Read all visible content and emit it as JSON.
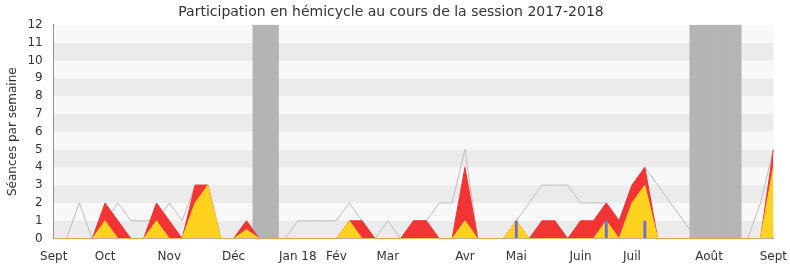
{
  "chart_data": {
    "type": "line",
    "title": "Participation en hémicycle au cours de la session 2017-2018",
    "y_label": "Séances par semaine",
    "categories": [
      "Sept",
      null,
      null,
      null,
      "Oct",
      null,
      null,
      null,
      null,
      "Nov",
      null,
      null,
      null,
      null,
      "Déc",
      null,
      null,
      null,
      null,
      "Jan 18",
      null,
      null,
      "Fév",
      null,
      null,
      null,
      "Mar",
      null,
      null,
      null,
      null,
      null,
      "Avr",
      null,
      null,
      null,
      "Mai",
      null,
      null,
      null,
      null,
      "Juin",
      null,
      null,
      null,
      "Juil",
      null,
      null,
      null,
      null,
      null,
      "Août",
      null,
      null,
      null,
      null,
      "Sept"
    ],
    "series": [
      {
        "type": "bar",
        "color": "#b4b4b4",
        "values": [
          null,
          null,
          null,
          null,
          null,
          null,
          null,
          null,
          null,
          null,
          null,
          null,
          null,
          null,
          null,
          null,
          12,
          12,
          null,
          null,
          null,
          null,
          null,
          null,
          null,
          null,
          null,
          null,
          null,
          null,
          null,
          null,
          null,
          null,
          null,
          null,
          null,
          null,
          null,
          null,
          null,
          null,
          null,
          null,
          null,
          null,
          null,
          null,
          null,
          null,
          12,
          12,
          12,
          12,
          null,
          null,
          null
        ]
      },
      {
        "type": "line",
        "color": "#bdbdbd",
        "values": [
          0,
          0,
          2,
          0,
          1,
          2,
          1,
          1,
          1,
          2,
          1,
          3,
          3,
          0,
          0,
          1,
          0,
          0,
          0,
          1,
          1,
          1,
          1,
          2,
          1,
          0,
          1,
          0,
          1,
          1,
          2,
          2,
          5,
          0,
          0,
          0,
          1,
          2,
          3,
          3,
          3,
          2,
          2,
          2,
          1,
          3,
          4,
          3,
          2,
          1,
          0,
          0,
          0,
          0,
          0,
          2,
          5
        ]
      },
      {
        "type": "area",
        "color": "#f23434",
        "values": [
          0,
          0,
          0,
          0,
          2,
          1,
          0,
          0,
          2,
          1,
          0,
          3,
          3,
          0,
          0,
          1,
          0,
          0,
          0,
          0,
          0,
          0,
          0,
          1,
          1,
          0,
          0,
          0,
          1,
          1,
          0,
          0,
          4,
          0,
          0,
          0,
          1,
          0,
          1,
          1,
          0,
          1,
          1,
          2,
          1,
          3,
          4,
          0,
          0,
          0,
          0,
          0,
          0,
          0,
          0,
          0,
          5
        ]
      },
      {
        "type": "area",
        "color": "#ffd21f",
        "values": [
          0,
          0,
          0,
          0,
          1,
          0,
          0,
          0,
          1,
          0,
          0,
          2,
          3,
          0,
          0,
          0.5,
          0,
          0,
          0,
          0,
          0,
          0,
          0,
          1,
          0,
          0,
          0,
          0,
          0,
          0,
          0,
          0,
          1,
          0,
          0,
          0,
          1,
          0,
          0,
          0,
          0,
          0,
          0,
          1,
          0,
          2,
          3,
          0,
          0,
          0,
          0,
          0,
          0,
          0,
          0,
          0,
          4
        ]
      },
      {
        "type": "bar",
        "color": "#6b6bd6",
        "values": [
          null,
          null,
          null,
          null,
          null,
          null,
          null,
          null,
          null,
          null,
          null,
          null,
          null,
          null,
          null,
          null,
          null,
          null,
          null,
          null,
          null,
          null,
          null,
          null,
          null,
          null,
          null,
          null,
          null,
          null,
          null,
          null,
          null,
          null,
          null,
          null,
          1,
          null,
          null,
          null,
          null,
          null,
          null,
          1,
          null,
          null,
          1,
          null,
          null,
          null,
          null,
          null,
          null,
          null,
          null,
          null,
          null
        ]
      }
    ],
    "ylim": [
      0,
      12
    ],
    "yticks": [
      0,
      1,
      2,
      3,
      4,
      5,
      6,
      7,
      8,
      9,
      10,
      11,
      12
    ],
    "grid": true
  }
}
